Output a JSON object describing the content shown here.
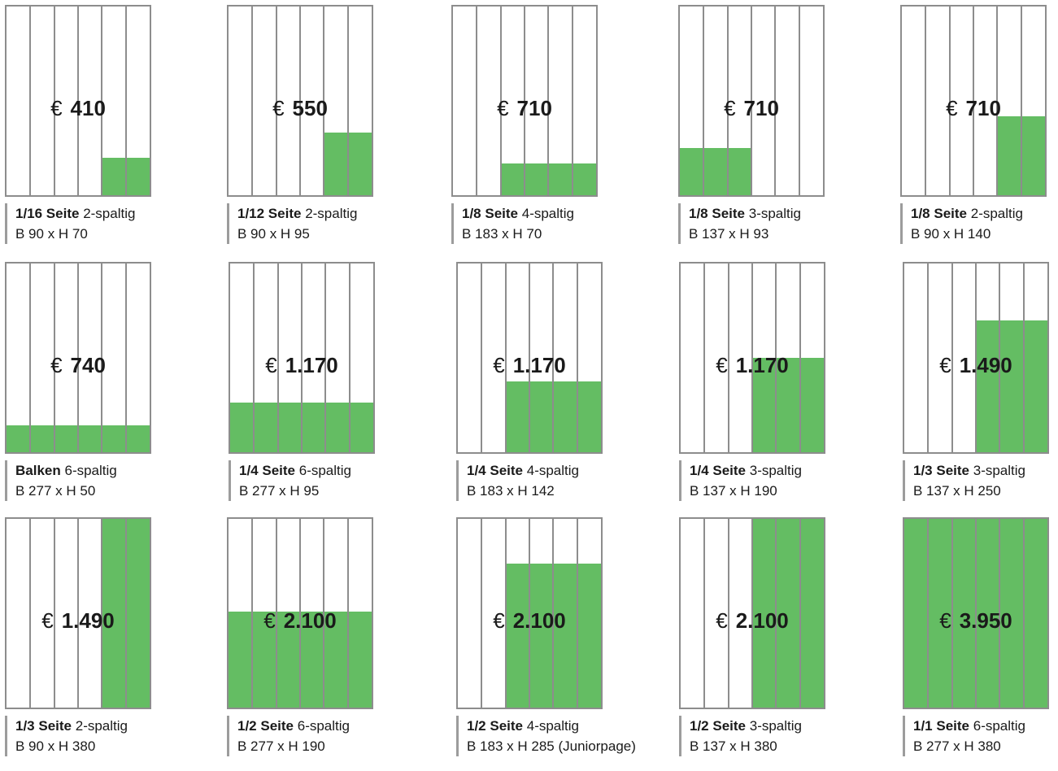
{
  "fill_color": "#64bd63",
  "border_color": "#8d8d8d",
  "currency_symbol": "€",
  "ads": [
    {
      "price": "410",
      "size": "1/16 Seite",
      "cols": "2-spaltig",
      "dims": "B 90 x H 70",
      "fill_fraction_w": 0.333,
      "fill_fraction_h": 0.2,
      "fill_anchor": "bottom-right"
    },
    {
      "price": "550",
      "size": "1/12 Seite",
      "cols": "2-spaltig",
      "dims": "B 90 x H 95",
      "fill_fraction_w": 0.333,
      "fill_fraction_h": 0.333,
      "fill_anchor": "bottom-right"
    },
    {
      "price": "710",
      "size": "1/8 Seite",
      "cols": "4-spaltig",
      "dims": "B 183 x H 70",
      "fill_fraction_w": 0.667,
      "fill_fraction_h": 0.167,
      "fill_anchor": "bottom-right"
    },
    {
      "price": "710",
      "size": "1/8 Seite",
      "cols": "3-spaltig",
      "dims": "B 137 x H 93",
      "fill_fraction_w": 0.5,
      "fill_fraction_h": 0.25,
      "fill_anchor": "bottom-left"
    },
    {
      "price": "710",
      "size": "1/8 Seite",
      "cols": "2-spaltig",
      "dims": "B 90 x H 140",
      "fill_fraction_w": 0.333,
      "fill_fraction_h": 0.417,
      "fill_anchor": "bottom-right"
    },
    {
      "price": "740",
      "size": "Balken",
      "cols": "6-spaltig",
      "dims": "B 277 x H 50",
      "fill_fraction_w": 1.0,
      "fill_fraction_h": 0.143,
      "fill_anchor": "bottom-left"
    },
    {
      "price": "1.170",
      "size": "1/4 Seite",
      "cols": "6-spaltig",
      "dims": "B 277 x H 95",
      "fill_fraction_w": 1.0,
      "fill_fraction_h": 0.262,
      "fill_anchor": "bottom-left"
    },
    {
      "price": "1.170",
      "size": "1/4 Seite",
      "cols": "4-spaltig",
      "dims": "B 183 x H 142",
      "fill_fraction_w": 0.667,
      "fill_fraction_h": 0.375,
      "fill_anchor": "bottom-right"
    },
    {
      "price": "1.170",
      "size": "1/4 Seite",
      "cols": "3-spaltig",
      "dims": "B 137 x H 190",
      "fill_fraction_w": 0.5,
      "fill_fraction_h": 0.5,
      "fill_anchor": "bottom-right"
    },
    {
      "price": "1.490",
      "size": "1/3 Seite",
      "cols": "3-spaltig",
      "dims": "B 137 x H 250",
      "fill_fraction_w": 0.5,
      "fill_fraction_h": 0.698,
      "fill_anchor": "bottom-right"
    },
    {
      "price": "1.490",
      "size": "1/3 Seite",
      "cols": "2-spaltig",
      "dims": "B 90 x H 380",
      "fill_fraction_w": 0.333,
      "fill_fraction_h": 1.0,
      "fill_anchor": "bottom-right"
    },
    {
      "price": "2.100",
      "size": "1/2 Seite",
      "cols": "6-spaltig",
      "dims": "B 277 x H 190",
      "fill_fraction_w": 1.0,
      "fill_fraction_h": 0.51,
      "fill_anchor": "bottom-left"
    },
    {
      "price": "2.100",
      "size": "1/2 Seite",
      "cols": "4-spaltig",
      "dims": "B 183 x H 285 (Juniorpage)",
      "fill_fraction_w": 0.667,
      "fill_fraction_h": 0.762,
      "fill_anchor": "bottom-right"
    },
    {
      "price": "2.100",
      "size": "1/2 Seite",
      "cols": "3-spaltig",
      "dims": "B 137 x H 380",
      "fill_fraction_w": 0.5,
      "fill_fraction_h": 1.0,
      "fill_anchor": "bottom-right"
    },
    {
      "price": "3.950",
      "size": "1/1 Seite",
      "cols": "6-spaltig",
      "dims": "B 277 x H 380",
      "fill_fraction_w": 1.0,
      "fill_fraction_h": 1.0,
      "fill_anchor": "bottom-left"
    }
  ]
}
